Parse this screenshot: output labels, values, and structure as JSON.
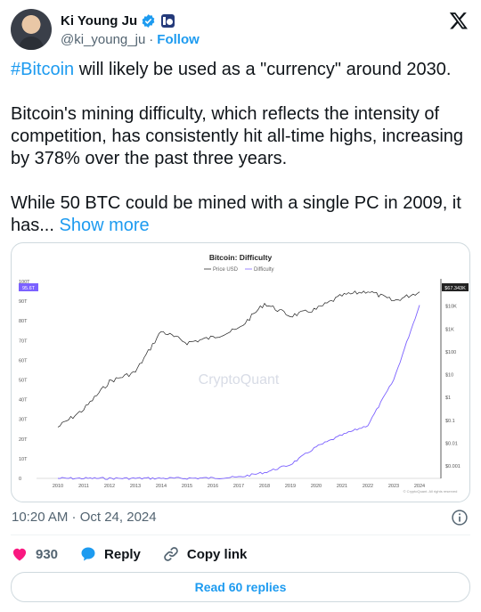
{
  "author": {
    "display_name": "Ki Young Ju",
    "handle": "@ki_young_ju",
    "separator": "·",
    "follow_label": "Follow"
  },
  "tweet": {
    "hashtag": "#Bitcoin",
    "line1_rest": " will likely be used as a \"currency\" around 2030.",
    "para2": "Bitcoin's mining difficulty, which reflects the intensity of competition, has consistently hit all-time highs, increasing by 378% over the past three years.",
    "para3": "While 50 BTC could be mined with a single PC in 2009, it has...",
    "show_more": "Show more"
  },
  "chart_data": {
    "type": "line",
    "title": "Bitcoin: Difficulty",
    "legend": [
      "Price USD",
      "Difficulty"
    ],
    "legend_placement": "top-center",
    "watermark": "CryptoQuant",
    "footer_note": "© CryptoQuant. All rights reserved",
    "x": [
      "2010",
      "2011",
      "2012",
      "2013",
      "2014",
      "2015",
      "2016",
      "2017",
      "2018",
      "2019",
      "2020",
      "2021",
      "2022",
      "2023",
      "2024"
    ],
    "left_axis": {
      "label": "",
      "ticks": [
        "0",
        "10T",
        "20T",
        "30T",
        "40T",
        "50T",
        "60T",
        "70T",
        "80T",
        "90T",
        "100T"
      ],
      "ylim": [
        0,
        100
      ],
      "current_value_label": "95.6T"
    },
    "right_axis": {
      "scale": "log",
      "ticks": [
        "$0.001",
        "$0.01",
        "$0.1",
        "$1",
        "$10",
        "$100",
        "$1K",
        "$10K"
      ],
      "current_value_label": "$67.343K"
    },
    "series": [
      {
        "name": "Difficulty",
        "color": "#7b61ff",
        "axis": "left",
        "values": [
          0,
          0,
          0,
          0,
          0.02,
          0.05,
          0.2,
          0.6,
          3,
          7,
          16,
          22,
          27,
          50,
          88
        ]
      },
      {
        "name": "Price USD",
        "color": "#222222",
        "axis": "right",
        "values": [
          0.05,
          0.3,
          5,
          13,
          800,
          250,
          430,
          1000,
          13000,
          3700,
          7200,
          29000,
          46000,
          16600,
          42000
        ]
      }
    ]
  },
  "meta": {
    "timestamp": "10:20 AM · Oct 24, 2024"
  },
  "actions": {
    "like_count": "930",
    "reply_label": "Reply",
    "copy_link_label": "Copy link"
  },
  "replies": {
    "label": "Read 60 replies"
  },
  "colors": {
    "accent": "#1d9bf0",
    "like": "#f91880",
    "muted": "#536471",
    "difficulty": "#7b61ff"
  }
}
